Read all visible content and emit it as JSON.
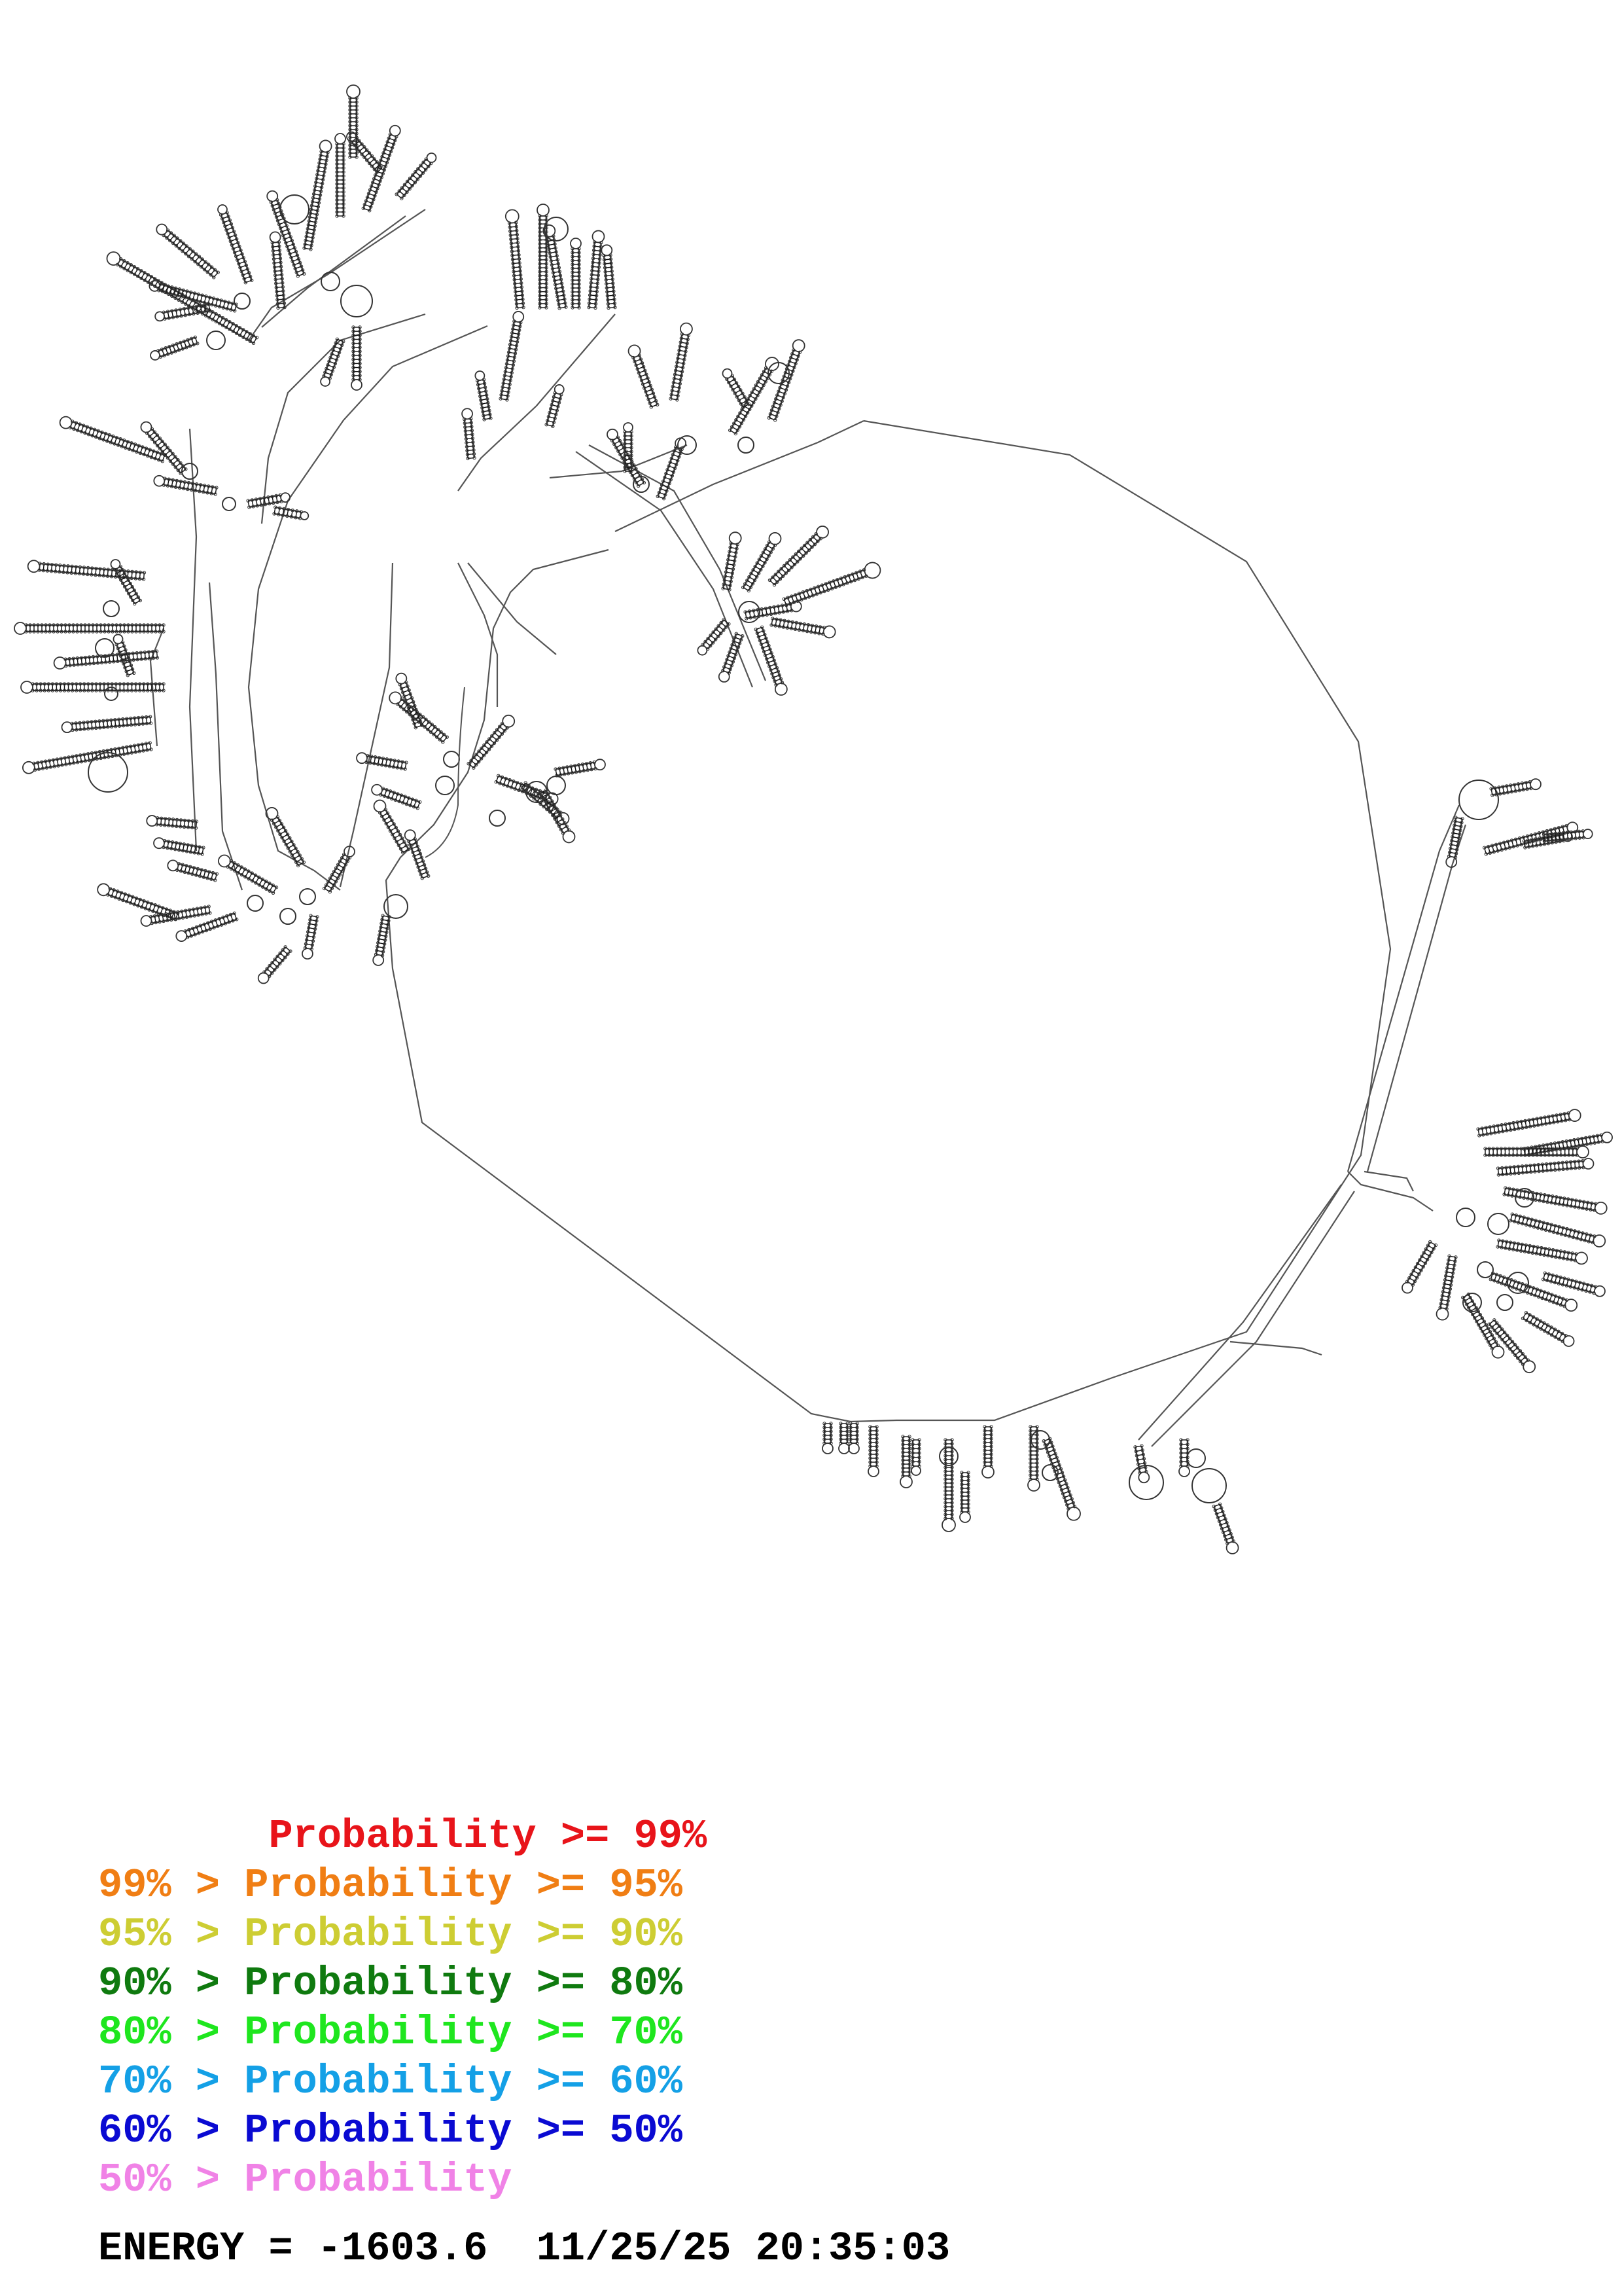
{
  "diagram": {
    "type": "rna-secondary-structure",
    "backbone_color": "#555555",
    "nucleotide_color": "#333333",
    "paired_color": "#000000",
    "low_prob_pair_color": "#1b8f2b"
  },
  "legend": [
    {
      "text": "       Probability >= 99%",
      "color": "#e8141a"
    },
    {
      "text": "99% > Probability >= 95%",
      "color": "#f07e14"
    },
    {
      "text": "95% > Probability >= 90%",
      "color": "#cdcd33"
    },
    {
      "text": "90% > Probability >= 80%",
      "color": "#0f7a0f"
    },
    {
      "text": "80% > Probability >= 70%",
      "color": "#1ee61e"
    },
    {
      "text": "70% > Probability >= 60%",
      "color": "#14a0e6"
    },
    {
      "text": "60% > Probability >= 50%",
      "color": "#0a0ad2"
    },
    {
      "text": "50% > Probability",
      "color": "#f082e6"
    }
  ],
  "energy": {
    "text": "ENERGY = -1603.6  11/25/25 20:35:03"
  }
}
